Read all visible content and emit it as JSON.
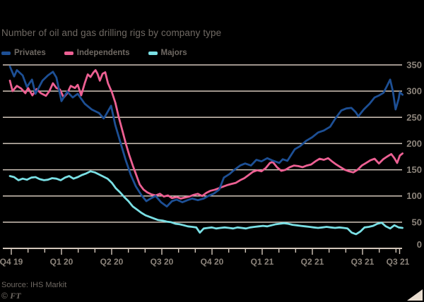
{
  "title": "Number of oil and gas drilling rigs by company type",
  "legend": [
    {
      "label": "Privates",
      "color": "#1d4f94"
    },
    {
      "label": "Independents",
      "color": "#ed6093"
    },
    {
      "label": "Majors",
      "color": "#7adfe4"
    }
  ],
  "source": {
    "label": "Source: IHS Markit",
    "credit_sign": "© ",
    "credit": "FT"
  },
  "colors": {
    "background": "#000000",
    "grid": "#d2c6ba",
    "axis_text": "#8c847b",
    "body_text": "#6f6963",
    "corner_mark": "#e8dccf"
  },
  "chart_data": {
    "type": "line",
    "title": "Number of oil and gas drilling rigs by company type",
    "xlabel": "",
    "ylabel": "",
    "x_unit": "weeks from start (Q4 2019) to end (Q3 2021)",
    "x_axis": {
      "labels": [
        "Q4 19",
        "Q1 20",
        "Q2 20",
        "Q3 20",
        "Q4 20",
        "Q1 21",
        "Q2 21",
        "Q3 21"
      ],
      "end_label": "Q3 21",
      "months_per_label": 3
    },
    "y_axis": {
      "ticks": [
        0,
        50,
        100,
        150,
        200,
        250,
        300,
        350
      ],
      "range": [
        0,
        350
      ],
      "position": "right"
    },
    "grid": true,
    "legend_position": "top-left",
    "series": [
      {
        "name": "Privates",
        "color": "#1d4f94",
        "points": [
          [
            0,
            347
          ],
          [
            1.1,
            328
          ],
          [
            1.8,
            340
          ],
          [
            3.3,
            330
          ],
          [
            4.4,
            308
          ],
          [
            5.7,
            322
          ],
          [
            6.6,
            295
          ],
          [
            7.7,
            310
          ],
          [
            8.4,
            320
          ],
          [
            9.8,
            330
          ],
          [
            11.1,
            337
          ],
          [
            12,
            326
          ],
          [
            13.3,
            281
          ],
          [
            14.8,
            299
          ],
          [
            16.2,
            288
          ],
          [
            17.5,
            295
          ],
          [
            19.3,
            276
          ],
          [
            21.1,
            265
          ],
          [
            23,
            258
          ],
          [
            24.2,
            248
          ],
          [
            24.8,
            255
          ],
          [
            26.1,
            272
          ],
          [
            27.2,
            235
          ],
          [
            28.4,
            205
          ],
          [
            29.9,
            168
          ],
          [
            31.2,
            140
          ],
          [
            32.5,
            118
          ],
          [
            33.9,
            102
          ],
          [
            35.2,
            90
          ],
          [
            36.5,
            96
          ],
          [
            37.6,
            100
          ],
          [
            39,
            88
          ],
          [
            40.5,
            80
          ],
          [
            41.8,
            90
          ],
          [
            43,
            93
          ],
          [
            44.5,
            88
          ],
          [
            45.8,
            92
          ],
          [
            47,
            95
          ],
          [
            48.5,
            92
          ],
          [
            50,
            95
          ],
          [
            51.2,
            100
          ],
          [
            52.5,
            104
          ],
          [
            54,
            112
          ],
          [
            55.2,
            135
          ],
          [
            56.7,
            142
          ],
          [
            57.6,
            148
          ],
          [
            59.4,
            158
          ],
          [
            60.7,
            162
          ],
          [
            62.2,
            158
          ],
          [
            63.6,
            169
          ],
          [
            64.9,
            166
          ],
          [
            66.4,
            172
          ],
          [
            67.6,
            168
          ],
          [
            69.5,
            163
          ],
          [
            70.4,
            170
          ],
          [
            71.6,
            167
          ],
          [
            73.5,
            189
          ],
          [
            74.9,
            195
          ],
          [
            76.4,
            205
          ],
          [
            78,
            212
          ],
          [
            79.5,
            221
          ],
          [
            81,
            225
          ],
          [
            82.6,
            232
          ],
          [
            84,
            248
          ],
          [
            85.5,
            263
          ],
          [
            86.8,
            267
          ],
          [
            88.1,
            268
          ],
          [
            89.2,
            260
          ],
          [
            89.9,
            252
          ],
          [
            91.3,
            265
          ],
          [
            92.8,
            276
          ],
          [
            94.1,
            288
          ],
          [
            95.3,
            292
          ],
          [
            96.4,
            297
          ],
          [
            97.3,
            310
          ],
          [
            98.1,
            322
          ],
          [
            98.8,
            300
          ],
          [
            99.5,
            265
          ],
          [
            100.3,
            285
          ],
          [
            100.6,
            298
          ],
          [
            101.3,
            293
          ]
        ]
      },
      {
        "name": "Independents",
        "color": "#ed6093",
        "points": [
          [
            0,
            320
          ],
          [
            0.7,
            300
          ],
          [
            1.8,
            310
          ],
          [
            2.9,
            305
          ],
          [
            4,
            296
          ],
          [
            4.7,
            306
          ],
          [
            5.8,
            292
          ],
          [
            6.9,
            304
          ],
          [
            8,
            296
          ],
          [
            9.3,
            291
          ],
          [
            10.2,
            300
          ],
          [
            11.1,
            315
          ],
          [
            12,
            306
          ],
          [
            12.9,
            303
          ],
          [
            13.9,
            288
          ],
          [
            14.8,
            296
          ],
          [
            15.7,
            310
          ],
          [
            16.8,
            306
          ],
          [
            17.5,
            312
          ],
          [
            18.4,
            292
          ],
          [
            19.3,
            315
          ],
          [
            20.1,
            332
          ],
          [
            20.8,
            327
          ],
          [
            21.5,
            335
          ],
          [
            22.1,
            340
          ],
          [
            22.6,
            333
          ],
          [
            23.2,
            320
          ],
          [
            23.9,
            333
          ],
          [
            24.6,
            336
          ],
          [
            25.3,
            315
          ],
          [
            26.3,
            298
          ],
          [
            27.2,
            278
          ],
          [
            28.1,
            250
          ],
          [
            29,
            225
          ],
          [
            29.9,
            200
          ],
          [
            30.8,
            178
          ],
          [
            31.7,
            158
          ],
          [
            32.6,
            140
          ],
          [
            33.5,
            122
          ],
          [
            34.5,
            112
          ],
          [
            35.4,
            107
          ],
          [
            36.5,
            103
          ],
          [
            37.6,
            101
          ],
          [
            38.7,
            104
          ],
          [
            39.7,
            99
          ],
          [
            40.8,
            101
          ],
          [
            41.8,
            96
          ],
          [
            43,
            98
          ],
          [
            44.1,
            95
          ],
          [
            45.2,
            97
          ],
          [
            46.3,
            99
          ],
          [
            47.4,
            102
          ],
          [
            48.5,
            104
          ],
          [
            49.6,
            100
          ],
          [
            50.7,
            106
          ],
          [
            51.8,
            110
          ],
          [
            52.9,
            112
          ],
          [
            54,
            115
          ],
          [
            55.1,
            118
          ],
          [
            56.2,
            121
          ],
          [
            57.2,
            123
          ],
          [
            58.3,
            125
          ],
          [
            59.4,
            130
          ],
          [
            60.5,
            134
          ],
          [
            61.6,
            140
          ],
          [
            62.7,
            146
          ],
          [
            63.8,
            149
          ],
          [
            64.9,
            147
          ],
          [
            66,
            153
          ],
          [
            67.1,
            163
          ],
          [
            67.8,
            165
          ],
          [
            68.9,
            155
          ],
          [
            70,
            148
          ],
          [
            71.1,
            150
          ],
          [
            72.2,
            155
          ],
          [
            73.3,
            158
          ],
          [
            74.4,
            157
          ],
          [
            75.5,
            155
          ],
          [
            76.6,
            158
          ],
          [
            77.7,
            160
          ],
          [
            78.8,
            166
          ],
          [
            79.9,
            171
          ],
          [
            81,
            169
          ],
          [
            82.1,
            172
          ],
          [
            83.1,
            166
          ],
          [
            84.2,
            160
          ],
          [
            85.3,
            155
          ],
          [
            86.4,
            150
          ],
          [
            87.5,
            147
          ],
          [
            88.6,
            145
          ],
          [
            89.7,
            150
          ],
          [
            90.8,
            158
          ],
          [
            91.9,
            163
          ],
          [
            93,
            168
          ],
          [
            94.1,
            171
          ],
          [
            95.2,
            162
          ],
          [
            96.3,
            170
          ],
          [
            97.3,
            175
          ],
          [
            98.4,
            180
          ],
          [
            99.2,
            172
          ],
          [
            99.9,
            163
          ],
          [
            100.6,
            177
          ],
          [
            101.3,
            181
          ]
        ]
      },
      {
        "name": "Majors",
        "color": "#7adfe4",
        "points": [
          [
            0,
            138
          ],
          [
            1.1,
            136
          ],
          [
            2.2,
            130
          ],
          [
            3.3,
            133
          ],
          [
            4.4,
            131
          ],
          [
            5.5,
            135
          ],
          [
            6.6,
            136
          ],
          [
            7.7,
            132
          ],
          [
            8.8,
            130
          ],
          [
            9.8,
            131
          ],
          [
            10.9,
            134
          ],
          [
            12,
            133
          ],
          [
            13.1,
            130
          ],
          [
            14.2,
            135
          ],
          [
            15.3,
            138
          ],
          [
            16.4,
            133
          ],
          [
            17.5,
            136
          ],
          [
            18.6,
            140
          ],
          [
            19.7,
            143
          ],
          [
            20.8,
            147
          ],
          [
            21.9,
            145
          ],
          [
            23,
            141
          ],
          [
            24.1,
            137
          ],
          [
            25.2,
            133
          ],
          [
            26.3,
            125
          ],
          [
            27.3,
            115
          ],
          [
            28.4,
            107
          ],
          [
            29.5,
            98
          ],
          [
            30.6,
            90
          ],
          [
            31.7,
            80
          ],
          [
            32.8,
            74
          ],
          [
            33.9,
            68
          ],
          [
            35,
            63
          ],
          [
            36.1,
            60
          ],
          [
            37.2,
            57
          ],
          [
            38.3,
            54
          ],
          [
            39.4,
            53
          ],
          [
            40.5,
            51
          ],
          [
            41.6,
            50
          ],
          [
            42.7,
            47
          ],
          [
            43.8,
            46
          ],
          [
            44.9,
            44
          ],
          [
            45.9,
            42
          ],
          [
            47,
            41
          ],
          [
            48.1,
            40
          ],
          [
            49,
            30
          ],
          [
            50,
            38
          ],
          [
            51.1,
            39
          ],
          [
            52.1,
            40
          ],
          [
            53.2,
            38
          ],
          [
            54.3,
            39
          ],
          [
            55.4,
            40
          ],
          [
            56.5,
            39
          ],
          [
            57.6,
            38
          ],
          [
            58.7,
            40
          ],
          [
            59.8,
            39
          ],
          [
            60.9,
            38
          ],
          [
            62,
            40
          ],
          [
            63.1,
            41
          ],
          [
            64.2,
            42
          ],
          [
            65.3,
            43
          ],
          [
            66.4,
            42
          ],
          [
            67.5,
            44
          ],
          [
            68.6,
            46
          ],
          [
            69.6,
            47
          ],
          [
            70.7,
            48
          ],
          [
            71.8,
            47
          ],
          [
            72.9,
            45
          ],
          [
            74,
            44
          ],
          [
            75.1,
            43
          ],
          [
            76.2,
            42
          ],
          [
            77.3,
            41
          ],
          [
            78.4,
            40
          ],
          [
            79.5,
            39
          ],
          [
            80.6,
            40
          ],
          [
            81.7,
            41
          ],
          [
            82.8,
            40
          ],
          [
            83.9,
            39
          ],
          [
            85,
            40
          ],
          [
            86.1,
            39
          ],
          [
            87.1,
            38
          ],
          [
            88.2,
            30
          ],
          [
            89.3,
            27
          ],
          [
            90.4,
            32
          ],
          [
            91.5,
            40
          ],
          [
            92.6,
            41
          ],
          [
            93.7,
            43
          ],
          [
            94.8,
            47
          ],
          [
            95.9,
            49
          ],
          [
            97,
            42
          ],
          [
            98.1,
            38
          ],
          [
            99.2,
            44
          ],
          [
            100.3,
            40
          ],
          [
            101.3,
            39
          ]
        ]
      }
    ]
  }
}
